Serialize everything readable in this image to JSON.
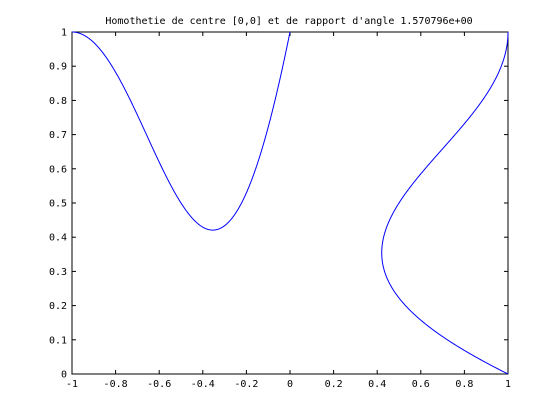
{
  "chart_data": {
    "type": "line",
    "title": "Homothetie de centre [0,0] et de rapport d'angle 1.570796e+00",
    "xlabel": "",
    "ylabel": "",
    "xlim": [
      -1,
      1
    ],
    "ylim": [
      0,
      1
    ],
    "x_ticks": [
      "-1",
      "-0.8",
      "-0.6",
      "-0.4",
      "-0.2",
      "0",
      "0.2",
      "0.4",
      "0.6",
      "0.8",
      "1"
    ],
    "y_ticks": [
      "0",
      "0.1",
      "0.2",
      "0.3",
      "0.4",
      "0.5",
      "0.6",
      "0.7",
      "0.8",
      "0.9",
      "1"
    ],
    "grid": false,
    "series": [
      {
        "curve": "original",
        "parametric": {
          "t_range": [
            0,
            1
          ],
          "x": "1 - sin(pi*t)*(1 - t)",
          "y": "t"
        },
        "color": "#0000ff"
      },
      {
        "curve": "transformed",
        "parametric": {
          "t_range": [
            0,
            1
          ],
          "x": "-t",
          "y": "1 - sin(pi*t)*(1 - t)"
        },
        "color": "#0000ff"
      }
    ]
  }
}
